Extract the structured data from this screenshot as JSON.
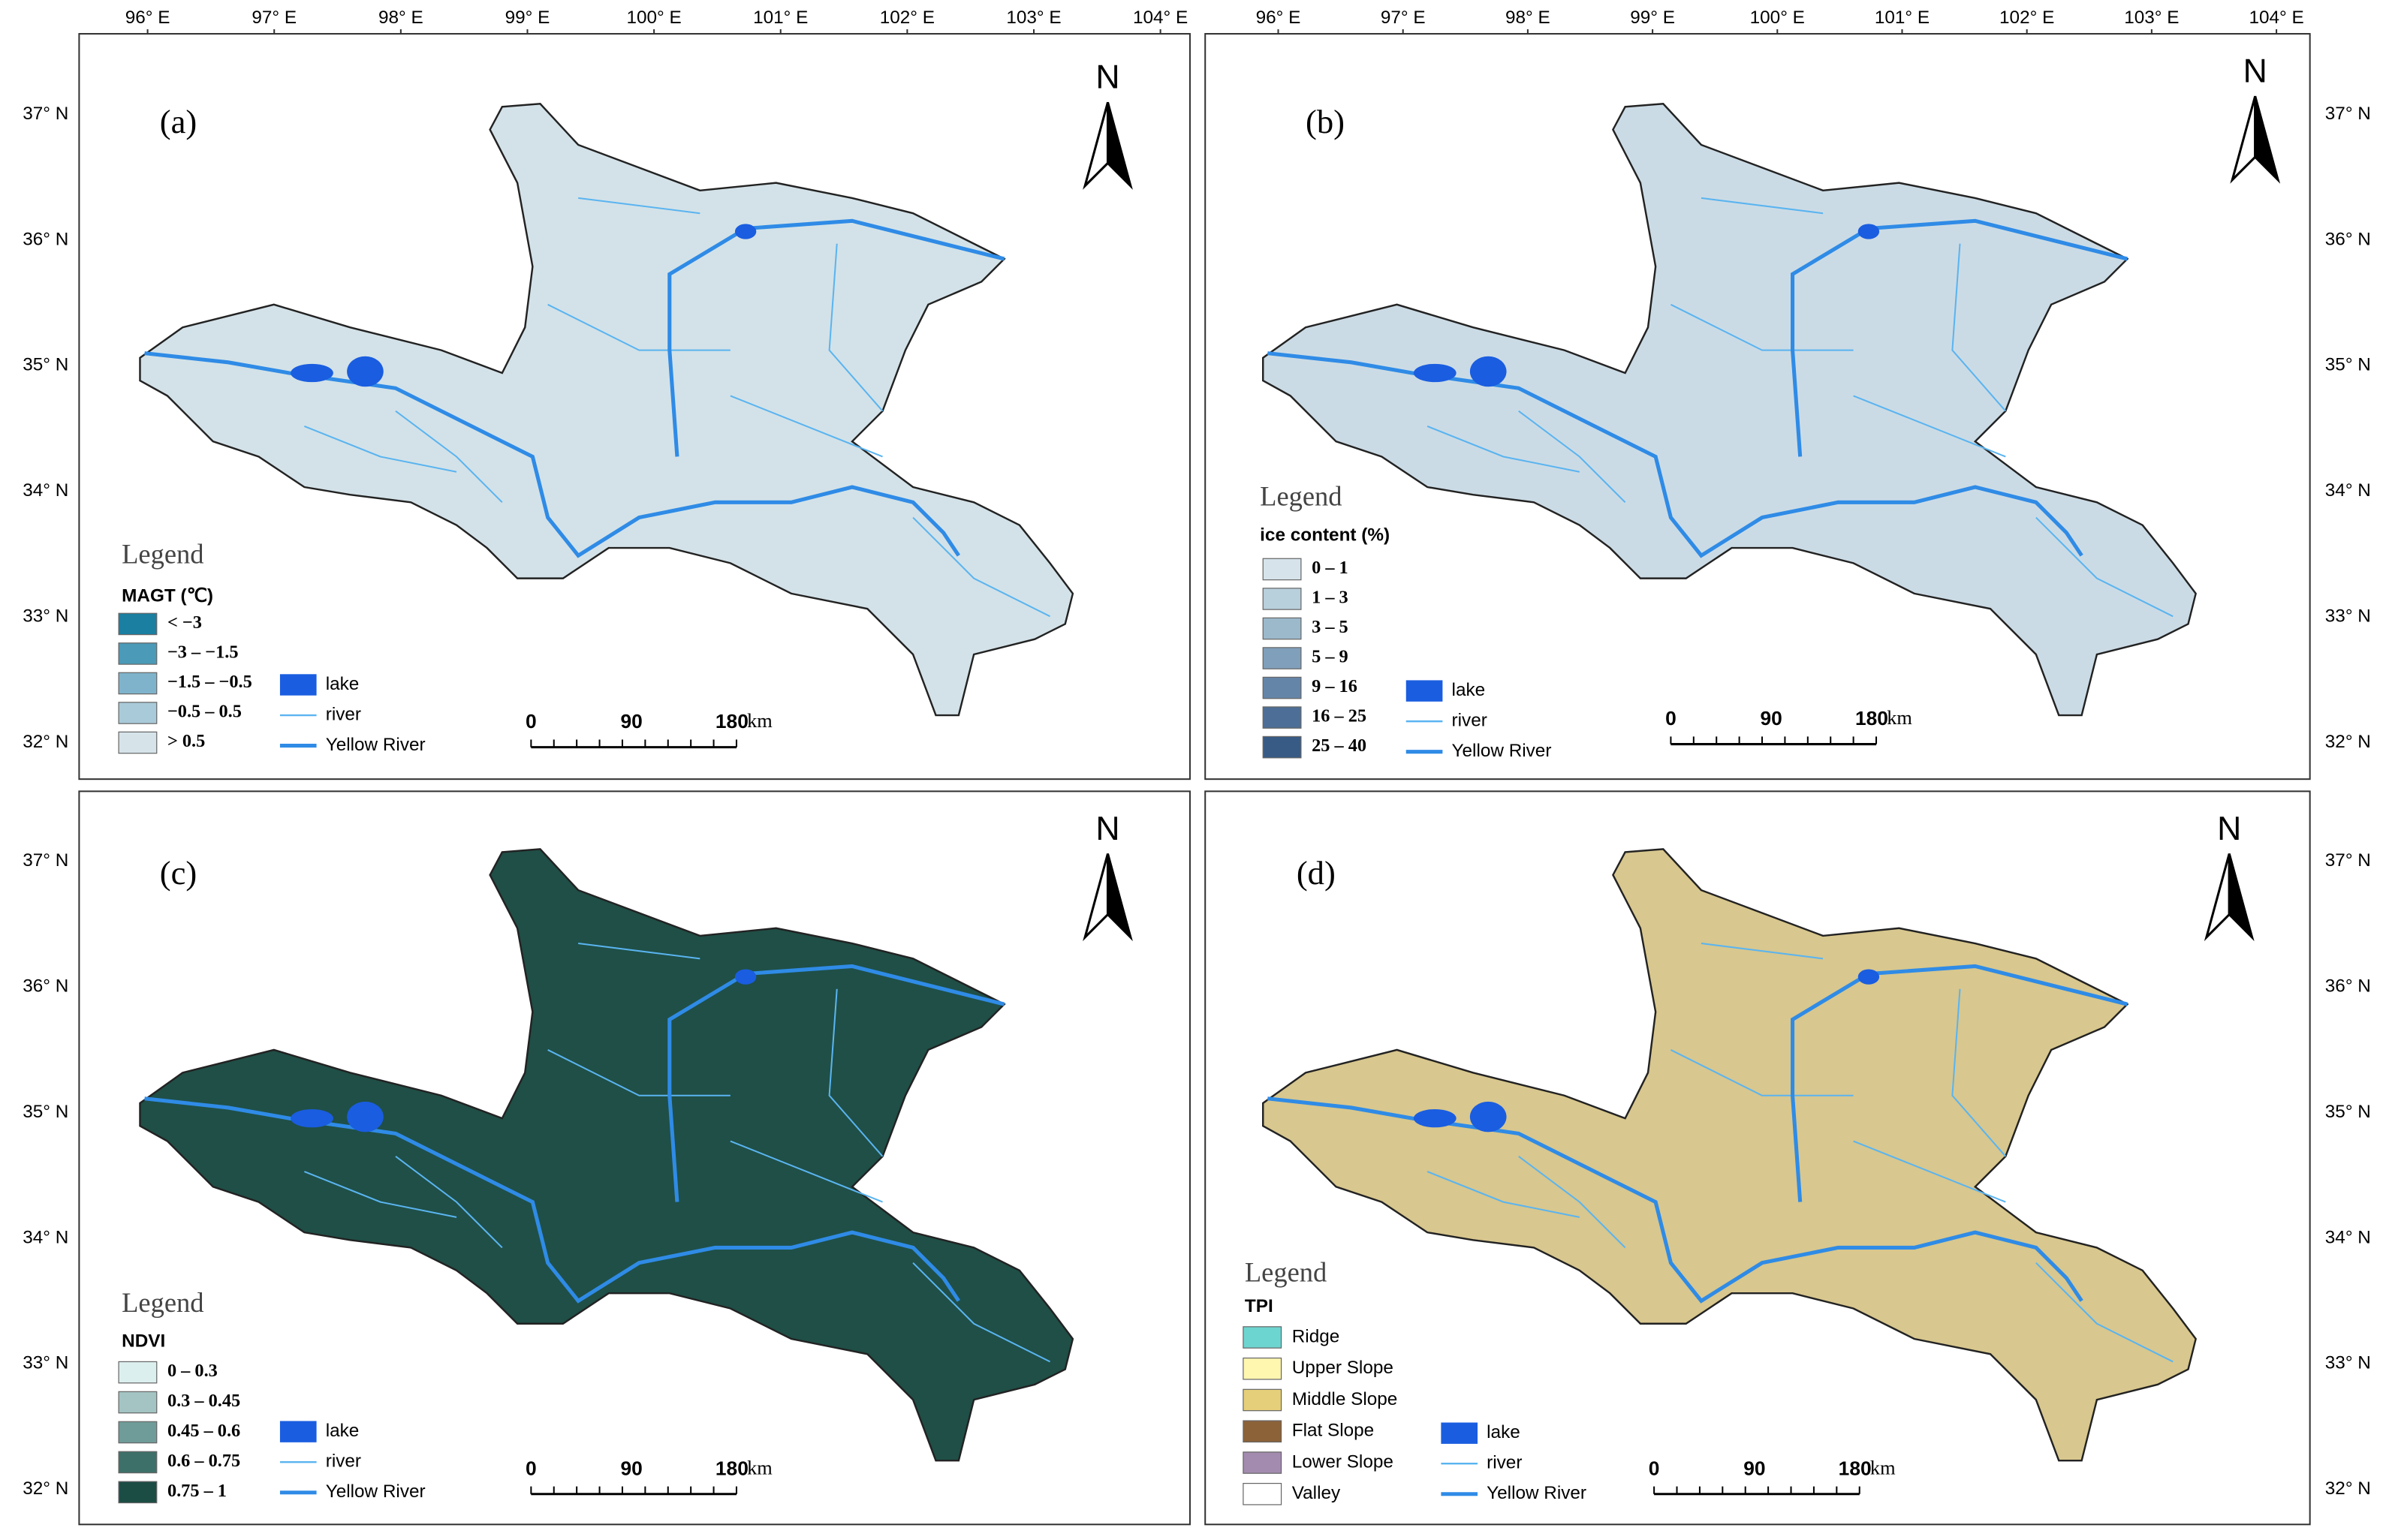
{
  "longitude_labels": [
    "96° E",
    "97° E",
    "98° E",
    "99° E",
    "100° E",
    "101° E",
    "102° E",
    "103° E",
    "104° E"
  ],
  "latitude_labels": [
    "37° N",
    "36° N",
    "35° N",
    "34° N",
    "33° N",
    "32° N"
  ],
  "panels": [
    {
      "label": "(a)",
      "north": "N",
      "fill": "#d3e2e8",
      "legend": {
        "title": "Legend",
        "variable": "MAGT (℃)",
        "classes": [
          "< −3",
          "−3 – −1.5",
          "−1.5 – −0.5",
          "−0.5 – 0.5",
          "> 0.5"
        ],
        "colors": [
          "#1a7fa0",
          "#4a9ab8",
          "#7fb3cc",
          "#a9cad8",
          "#d6e4ea"
        ],
        "lake": "lake",
        "river": "river",
        "main_river": "Yellow River"
      },
      "scale_bar": {
        "ticks": [
          "0",
          "90",
          "180"
        ],
        "unit": "km"
      }
    },
    {
      "label": "(b)",
      "north": "N",
      "fill": "#cbdbe5",
      "legend": {
        "title": "Legend",
        "variable": "ice content (%)",
        "classes": [
          "0 – 1",
          "1 – 3",
          "3 – 5",
          "5 – 9",
          "9 – 16",
          "16 – 25",
          "25 – 40"
        ],
        "colors": [
          "#d6e3ea",
          "#b8cfdc",
          "#9cb9cc",
          "#809fbb",
          "#6585a8",
          "#4d6e96",
          "#375b85"
        ],
        "lake": "lake",
        "river": "river",
        "main_river": "Yellow River"
      },
      "scale_bar": {
        "ticks": [
          "0",
          "90",
          "180"
        ],
        "unit": "km"
      }
    },
    {
      "label": "(c)",
      "north": "N",
      "fill": "#1f4f47",
      "legend": {
        "title": "Legend",
        "variable": "NDVI",
        "classes": [
          "0 – 0.3",
          "0.3 – 0.45",
          "0.45 – 0.6",
          "0.6 – 0.75",
          "0.75 – 1"
        ],
        "colors": [
          "#dcefef",
          "#a3c4c3",
          "#6f9c98",
          "#3d7069",
          "#1b4d45"
        ],
        "lake": "lake",
        "river": "river",
        "main_river": "Yellow River"
      },
      "scale_bar": {
        "ticks": [
          "0",
          "90",
          "180"
        ],
        "unit": "km"
      }
    },
    {
      "label": "(d)",
      "north": "N",
      "fill": "#d8c78e",
      "legend": {
        "title": "Legend",
        "variable": "TPI",
        "classes": [
          "Ridge",
          "Upper Slope",
          "Middle Slope",
          "Flat Slope",
          "Lower Slope",
          "Valley"
        ],
        "colors": [
          "#6dd5d0",
          "#fff7b0",
          "#e6cf7a",
          "#8c6239",
          "#a38bb0",
          "#ffffff"
        ],
        "lake": "lake",
        "river": "river",
        "main_river": "Yellow River"
      },
      "scale_bar": {
        "ticks": [
          "0",
          "90",
          "180"
        ],
        "unit": "km"
      }
    }
  ]
}
